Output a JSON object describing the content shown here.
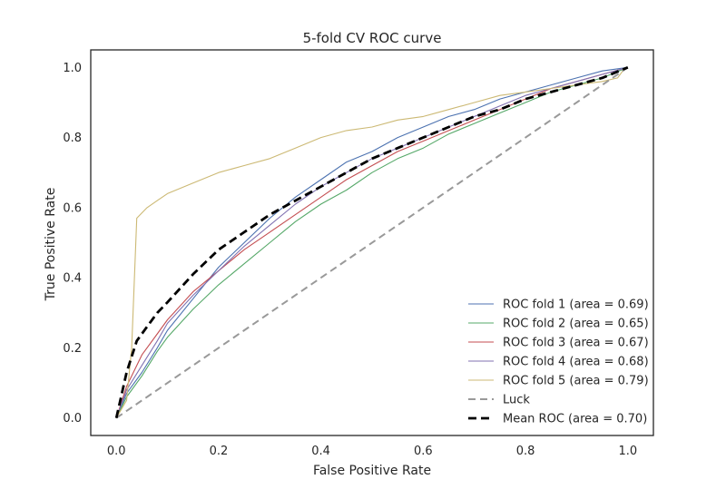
{
  "chart_data": {
    "type": "line",
    "title": "5-fold CV ROC curve",
    "xlabel": "False Positive Rate",
    "ylabel": "True Positive Rate",
    "xlim": [
      -0.05,
      1.05
    ],
    "ylim": [
      -0.05,
      1.05
    ],
    "xticks": [
      "0.0",
      "0.2",
      "0.4",
      "0.6",
      "0.8",
      "1.0"
    ],
    "yticks": [
      "0.0",
      "0.2",
      "0.4",
      "0.6",
      "0.8",
      "1.0"
    ],
    "grid": false,
    "legend_position": "lower-right",
    "series": [
      {
        "name": "ROC fold 1 (area = 0.69)",
        "color": "#4c72b0",
        "style": "solid",
        "x": [
          0,
          0.02,
          0.05,
          0.08,
          0.1,
          0.15,
          0.2,
          0.25,
          0.3,
          0.35,
          0.4,
          0.45,
          0.5,
          0.55,
          0.6,
          0.65,
          0.7,
          0.75,
          0.8,
          0.85,
          0.9,
          0.95,
          1.0
        ],
        "y": [
          0,
          0.07,
          0.13,
          0.2,
          0.25,
          0.34,
          0.43,
          0.5,
          0.57,
          0.63,
          0.68,
          0.73,
          0.76,
          0.8,
          0.83,
          0.86,
          0.88,
          0.91,
          0.93,
          0.95,
          0.97,
          0.99,
          1.0
        ]
      },
      {
        "name": "ROC fold 2 (area = 0.65)",
        "color": "#55a868",
        "style": "solid",
        "x": [
          0,
          0.02,
          0.05,
          0.08,
          0.1,
          0.15,
          0.2,
          0.25,
          0.3,
          0.35,
          0.4,
          0.45,
          0.5,
          0.55,
          0.6,
          0.65,
          0.7,
          0.75,
          0.8,
          0.85,
          0.9,
          0.95,
          1.0
        ],
        "y": [
          0,
          0.06,
          0.12,
          0.19,
          0.23,
          0.31,
          0.38,
          0.44,
          0.5,
          0.56,
          0.61,
          0.65,
          0.7,
          0.74,
          0.77,
          0.81,
          0.84,
          0.87,
          0.9,
          0.93,
          0.95,
          0.97,
          1.0
        ]
      },
      {
        "name": "ROC fold 3 (area = 0.67)",
        "color": "#c44e52",
        "style": "solid",
        "x": [
          0,
          0.02,
          0.05,
          0.08,
          0.1,
          0.15,
          0.2,
          0.25,
          0.3,
          0.35,
          0.4,
          0.45,
          0.5,
          0.55,
          0.6,
          0.65,
          0.7,
          0.75,
          0.8,
          0.85,
          0.9,
          0.95,
          1.0
        ],
        "y": [
          0,
          0.09,
          0.18,
          0.24,
          0.28,
          0.36,
          0.42,
          0.48,
          0.53,
          0.58,
          0.63,
          0.68,
          0.72,
          0.76,
          0.79,
          0.82,
          0.85,
          0.88,
          0.91,
          0.94,
          0.96,
          0.98,
          1.0
        ]
      },
      {
        "name": "ROC fold 4 (area = 0.68)",
        "color": "#8172b2",
        "style": "solid",
        "x": [
          0,
          0.02,
          0.05,
          0.08,
          0.1,
          0.15,
          0.2,
          0.25,
          0.3,
          0.35,
          0.4,
          0.45,
          0.5,
          0.55,
          0.6,
          0.65,
          0.7,
          0.75,
          0.8,
          0.85,
          0.9,
          0.95,
          1.0
        ],
        "y": [
          0,
          0.08,
          0.15,
          0.22,
          0.27,
          0.35,
          0.42,
          0.49,
          0.55,
          0.61,
          0.66,
          0.7,
          0.74,
          0.77,
          0.8,
          0.83,
          0.86,
          0.89,
          0.92,
          0.94,
          0.96,
          0.98,
          1.0
        ]
      },
      {
        "name": "ROC fold 5 (area = 0.79)",
        "color": "#ccb974",
        "style": "solid",
        "x": [
          0,
          0.02,
          0.03,
          0.04,
          0.06,
          0.08,
          0.1,
          0.15,
          0.2,
          0.25,
          0.3,
          0.35,
          0.4,
          0.45,
          0.5,
          0.55,
          0.6,
          0.65,
          0.7,
          0.75,
          0.8,
          0.85,
          0.9,
          0.95,
          0.98,
          0.99,
          1.0
        ],
        "y": [
          0,
          0.05,
          0.2,
          0.57,
          0.6,
          0.62,
          0.64,
          0.67,
          0.7,
          0.72,
          0.74,
          0.77,
          0.8,
          0.82,
          0.83,
          0.85,
          0.86,
          0.88,
          0.9,
          0.92,
          0.93,
          0.94,
          0.95,
          0.96,
          0.97,
          0.99,
          1.0
        ]
      },
      {
        "name": "Luck",
        "color": "#999999",
        "style": "dashed",
        "x": [
          0,
          1
        ],
        "y": [
          0,
          1
        ]
      },
      {
        "name": "Mean ROC (area = 0.70)",
        "color": "#000000",
        "style": "dashed-bold",
        "x": [
          0,
          0.02,
          0.04,
          0.06,
          0.08,
          0.1,
          0.15,
          0.2,
          0.25,
          0.3,
          0.35,
          0.4,
          0.45,
          0.5,
          0.55,
          0.6,
          0.65,
          0.7,
          0.75,
          0.8,
          0.85,
          0.9,
          0.95,
          1.0
        ],
        "y": [
          0,
          0.13,
          0.22,
          0.26,
          0.3,
          0.33,
          0.41,
          0.48,
          0.53,
          0.58,
          0.62,
          0.66,
          0.7,
          0.74,
          0.77,
          0.8,
          0.83,
          0.86,
          0.88,
          0.91,
          0.93,
          0.95,
          0.97,
          1.0
        ]
      }
    ]
  }
}
